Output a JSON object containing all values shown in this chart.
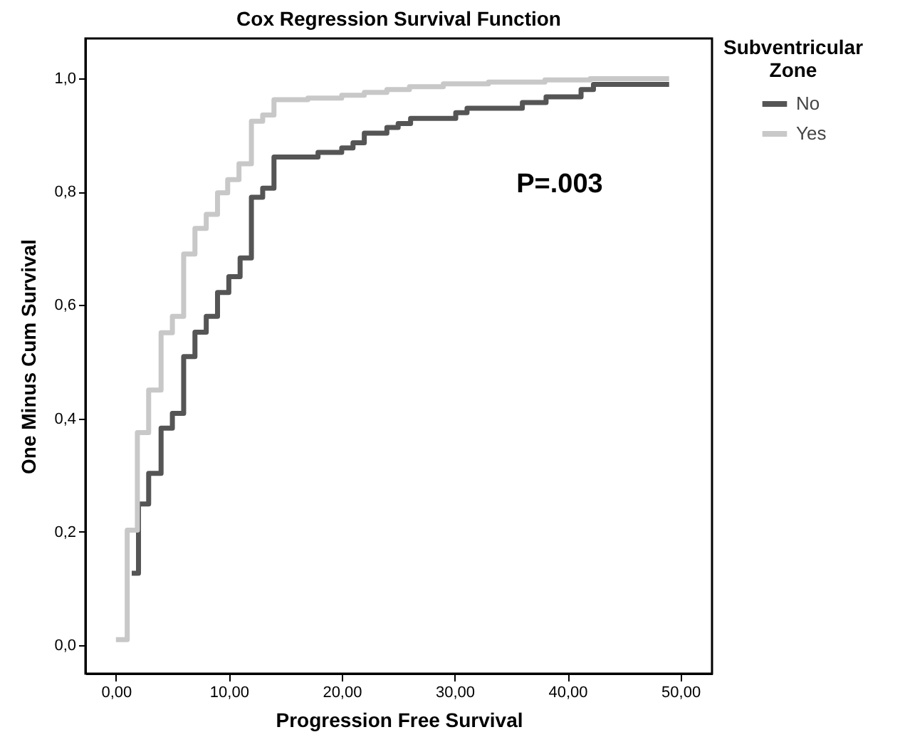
{
  "chart_data": {
    "type": "step",
    "title": "Cox Regression Survival Function",
    "xlabel": "Progression Free Survival",
    "ylabel": "One Minus Cum Survival",
    "legend_title": "Subventricular Zone",
    "annotations": [
      "P=.003"
    ],
    "xlim": [
      -2.7,
      52.8
    ],
    "ylim": [
      -0.05,
      1.07
    ],
    "xticks": [
      {
        "value": 0,
        "label": "0,00"
      },
      {
        "value": 10,
        "label": "10,00"
      },
      {
        "value": 20,
        "label": "20,00"
      },
      {
        "value": 30,
        "label": "30,00"
      },
      {
        "value": 40,
        "label": "40,00"
      },
      {
        "value": 50,
        "label": "50,00"
      }
    ],
    "yticks": [
      {
        "value": 0,
        "label": "0,0"
      },
      {
        "value": 0.2,
        "label": "0,2"
      },
      {
        "value": 0.4,
        "label": "0,4"
      },
      {
        "value": 0.6,
        "label": "0,6"
      },
      {
        "value": 0.8,
        "label": "0,8"
      },
      {
        "value": 1,
        "label": "1,0"
      }
    ],
    "series": [
      {
        "name": "No",
        "color": "#555555",
        "x": [
          1.4,
          2.0,
          2.9,
          4.0,
          5.0,
          6.0,
          7.0,
          8.0,
          9.0,
          10.0,
          11.0,
          12.0,
          13.0,
          14.0,
          17.9,
          20,
          21,
          22,
          24,
          25,
          26.1,
          30.1,
          31.1,
          36,
          38.1,
          41.2,
          42.3,
          49
        ],
        "values": [
          0.127,
          0.249,
          0.303,
          0.383,
          0.409,
          0.509,
          0.552,
          0.58,
          0.622,
          0.65,
          0.683,
          0.79,
          0.806,
          0.861,
          0.869,
          0.877,
          0.886,
          0.903,
          0.913,
          0.92,
          0.929,
          0.939,
          0.947,
          0.957,
          0.967,
          0.98,
          0.989,
          0.989
        ]
      },
      {
        "name": "Yes",
        "color": "#c8c8c8",
        "x": [
          0,
          1.0,
          1.9,
          2.9,
          4.0,
          5.0,
          6.0,
          7.0,
          8.0,
          9.0,
          9.9,
          10.9,
          12.0,
          13.0,
          14.0,
          17,
          20,
          22,
          24,
          26,
          29,
          33,
          38,
          42,
          49
        ],
        "values": [
          0.01,
          0.203,
          0.375,
          0.45,
          0.551,
          0.58,
          0.69,
          0.735,
          0.76,
          0.798,
          0.821,
          0.849,
          0.924,
          0.935,
          0.962,
          0.965,
          0.97,
          0.975,
          0.98,
          0.985,
          0.99,
          0.993,
          0.997,
          0.999,
          0.999
        ]
      }
    ],
    "legend": "top right",
    "marker": "none",
    "line_style": "solid",
    "grid": false
  }
}
